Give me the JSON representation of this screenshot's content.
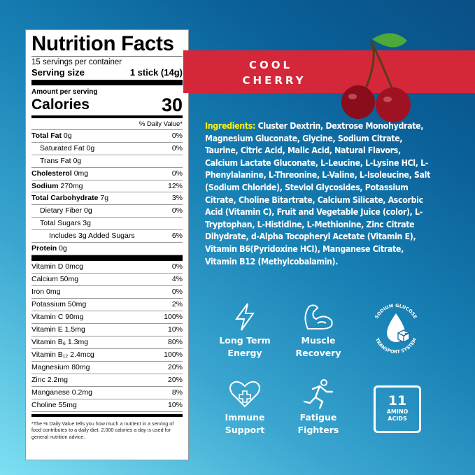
{
  "label": {
    "title": "Nutrition Facts",
    "servings": "15 servings per container",
    "serving_size_label": "Serving size",
    "serving_size_value": "1 stick (14g)",
    "amount_per_serving": "Amount per serving",
    "calories_label": "Calories",
    "calories_value": "30",
    "dv_header": "% Daily Value*",
    "macros": [
      {
        "name": "Total Fat",
        "amount": "0g",
        "dv": "0%",
        "bold": true,
        "indent": 0
      },
      {
        "name": "Saturated Fat",
        "amount": "0g",
        "dv": "0%",
        "bold": false,
        "indent": 1
      },
      {
        "name": "Trans Fat",
        "amount": "0g",
        "dv": "",
        "bold": false,
        "indent": 1
      },
      {
        "name": "Cholesterol",
        "amount": "0mg",
        "dv": "0%",
        "bold": true,
        "indent": 0
      },
      {
        "name": "Sodium",
        "amount": "270mg",
        "dv": "12%",
        "bold": true,
        "indent": 0
      },
      {
        "name": "Total Carbohydrate",
        "amount": "7g",
        "dv": "3%",
        "bold": true,
        "indent": 0
      },
      {
        "name": "Dietary Fiber",
        "amount": "0g",
        "dv": "0%",
        "bold": false,
        "indent": 1
      },
      {
        "name": "Total Sugars",
        "amount": "3g",
        "dv": "",
        "bold": false,
        "indent": 1
      },
      {
        "name": "Includes 3g Added Sugars",
        "amount": "",
        "dv": "6%",
        "bold": false,
        "indent": 2
      },
      {
        "name": "Protein",
        "amount": "0g",
        "dv": "",
        "bold": true,
        "indent": 0
      }
    ],
    "micros": [
      {
        "name": "Vitamin D 0mcg",
        "dv": "0%"
      },
      {
        "name": "Calcium 50mg",
        "dv": "4%"
      },
      {
        "name": "Iron 0mg",
        "dv": "0%"
      },
      {
        "name": "Potassium 50mg",
        "dv": "2%"
      },
      {
        "name": "Vitamin C 90mg",
        "dv": "100%"
      },
      {
        "name": "Vitamin E 1.5mg",
        "dv": "10%"
      },
      {
        "name": "Vitamin B₆ 1.3mg",
        "dv": "80%"
      },
      {
        "name": "Vitamin B₁₂ 2.4mcg",
        "dv": "100%"
      },
      {
        "name": "Magnesium 80mg",
        "dv": "20%"
      },
      {
        "name": "Zinc 2.2mg",
        "dv": "20%"
      },
      {
        "name": "Manganese 0.2mg",
        "dv": "8%"
      },
      {
        "name": "Choline 55mg",
        "dv": "10%"
      }
    ],
    "footnote": "*The % Daily Value tells you how much a nutrient in a serving of food contributes to a daily diet. 2,000 calories a day is used for general nutrition advice."
  },
  "flavor": {
    "line1": "COOL",
    "line2": "CHERRY"
  },
  "ingredients": {
    "heading": "Ingredients:",
    "text": " Cluster Dextrin, Dextrose Monohydrate, Magnesium Gluconate, Glycine, Sodium Citrate, Taurine, Citric Acid, Malic Acid, Natural Flavors, Calcium Lactate Gluconate, L-Leucine, L-Lysine HCl, L-Phenylalanine, L-Threonine, L-Valine, L-Isoleucine, Salt (Sodium Chloride), Steviol Glycosides, Potassium Citrate, Choline Bitartrate, Calcium Silicate, Ascorbic Acid (Vitamin C), Fruit and Vegetable Juice (color), L-Tryptophan, L-Histidine, L-Methionine, Zinc Citrate Dihydrate, d-Alpha Tocopheryl Acetate (Vitamin E), Vitamin B6(Pyridoxine HCl), Manganese Citrate, Vitamin B12 (Methylcobalamin)."
  },
  "features": [
    {
      "icon": "lightning-bolt-icon",
      "line1": "Long Term",
      "line2": "Energy"
    },
    {
      "icon": "flexed-arm-icon",
      "line1": "Muscle",
      "line2": "Recovery"
    },
    {
      "icon": "heart-plus-icon",
      "line1": "Immune",
      "line2": "Support"
    },
    {
      "icon": "running-person-icon",
      "line1": "Fatigue",
      "line2": "Fighters"
    }
  ],
  "badge_sodium": {
    "top": "SODIUM GLUCOSE",
    "bottom": "TRANSPORT SYSTEM",
    "icon": "water-drop-cube-icon"
  },
  "badge_amino": {
    "number": "11",
    "line1": "AMINO",
    "line2": "ACIDS"
  },
  "colors": {
    "banner": "#d4283a",
    "ingredients_heading": "#fff200",
    "bg_dark": "#0a4f86",
    "bg_light": "#7fe0f2"
  }
}
